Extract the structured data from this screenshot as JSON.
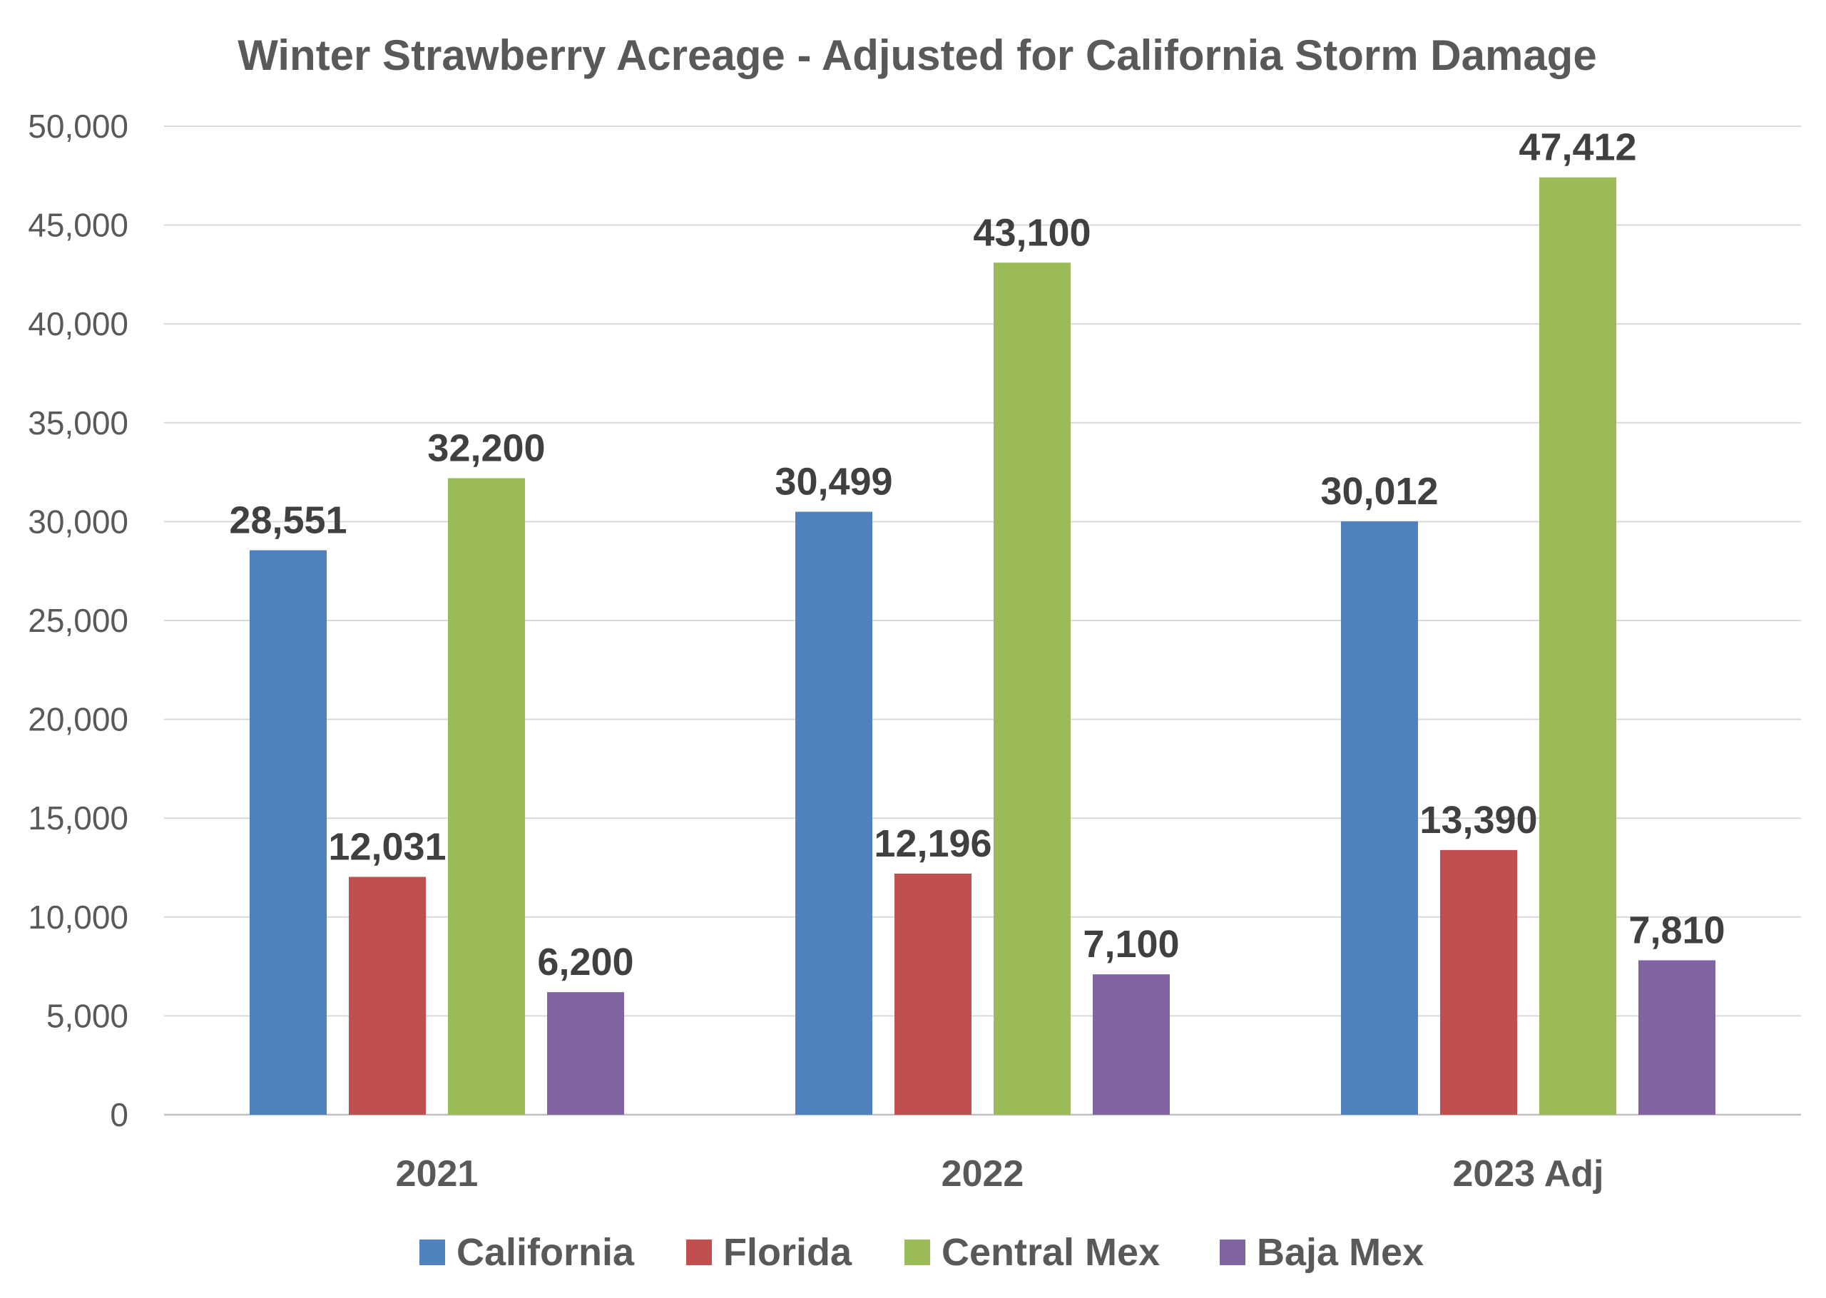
{
  "chart_data": {
    "type": "bar",
    "title": "Winter Strawberry Acreage - Adjusted for California Storm Damage",
    "xlabel": "",
    "ylabel": "",
    "categories": [
      "2021",
      "2022",
      "2023 Adj"
    ],
    "ylim": [
      0,
      50000
    ],
    "yticks": [
      0,
      5000,
      10000,
      15000,
      20000,
      25000,
      30000,
      35000,
      40000,
      45000,
      50000
    ],
    "ytick_labels": [
      "0",
      "5,000",
      "10,000",
      "15,000",
      "20,000",
      "25,000",
      "30,000",
      "35,000",
      "40,000",
      "45,000",
      "50,000"
    ],
    "grid": true,
    "legend_position": "bottom",
    "series": [
      {
        "name": "California",
        "color": "#4f81bd",
        "values": [
          28551,
          30499,
          30012
        ],
        "labels": [
          "28,551",
          "30,499",
          "30,012"
        ]
      },
      {
        "name": "Florida",
        "color": "#c0504d",
        "values": [
          12031,
          12196,
          13390
        ],
        "labels": [
          "12,031",
          "12,196",
          "13,390"
        ]
      },
      {
        "name": "Central Mex",
        "color": "#9bbb59",
        "values": [
          32200,
          43100,
          47412
        ],
        "labels": [
          "32,200",
          "43,100",
          "47,412"
        ]
      },
      {
        "name": "Baja Mex",
        "color": "#8064a2",
        "values": [
          6200,
          7100,
          7810
        ],
        "labels": [
          "6,200",
          "7,100",
          "7,810"
        ]
      }
    ]
  }
}
